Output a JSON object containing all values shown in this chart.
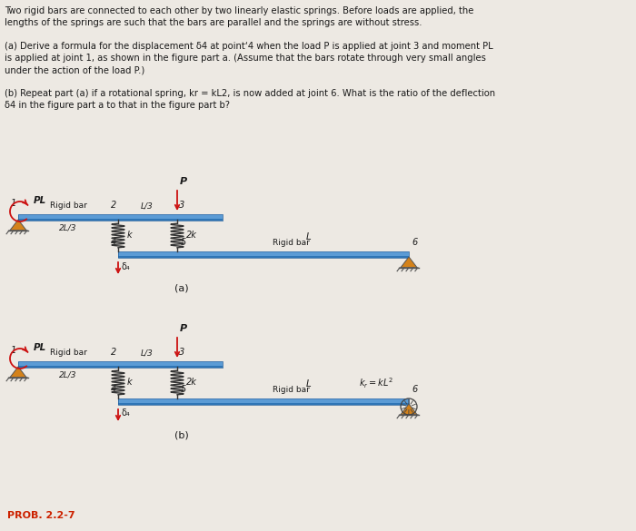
{
  "bg_color": "#ede9e3",
  "bar_color_top": "#5b9bd5",
  "bar_color_bot": "#2e75b6",
  "bar_highlight": "#a8c8ee",
  "spring_color": "#333333",
  "text_color": "#1a1a1a",
  "red_color": "#cc1111",
  "orange_color": "#d4821a",
  "prob_color": "#cc2200",
  "prob_label": "PROB. 2.2-7",
  "text_lines": [
    "Two rigid bars are connected to each other by two linearly elastic springs. Before loads are applied, the",
    "lengths of the springs are such that the bars are parallel and the springs are without stress.",
    "(a) Derive a formula for the displacement δ4 at point‘4 when the load P is applied at joint 3 and moment PL",
    "is applied at joint 1, as shown in the figure part a. (Assume that the bars rotate through very small angles",
    "under the action of the load P.)",
    "(b) Repeat part (a) if a rotational spring, kr = kL2, is now added at joint 6. What is the ratio of the deflection",
    "δ4 in the figure part a to that in the figure part b?"
  ]
}
